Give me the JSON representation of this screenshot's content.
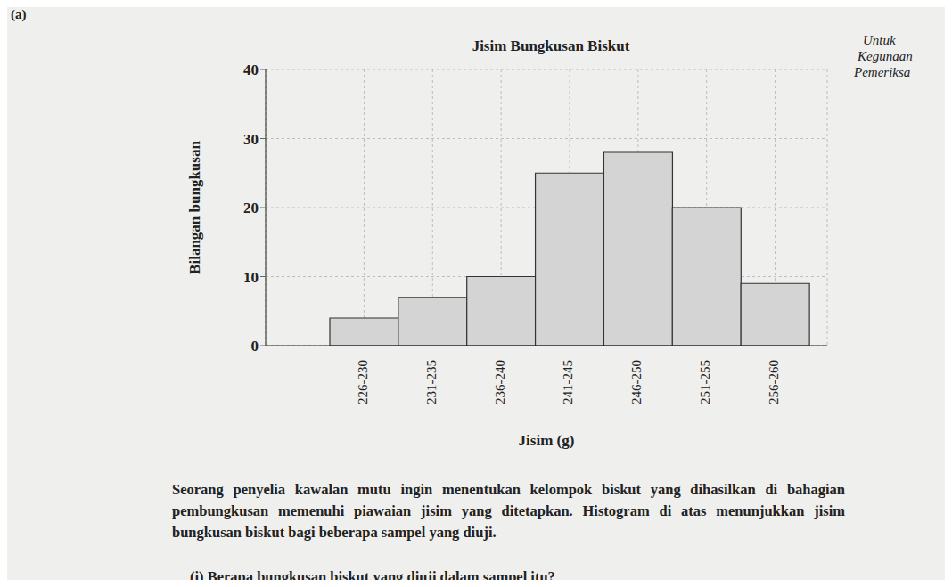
{
  "part_label": "(a)",
  "margin_note": [
    "Untuk",
    "Kegunaan",
    "Pemeriksa"
  ],
  "chart_data": {
    "type": "bar",
    "title": "Jisim Bungkusan Biskut",
    "x_label": "Jisim (g)",
    "y_label": "Bilangan bungkusan",
    "categories": [
      "226-230",
      "231-235",
      "236-240",
      "241-245",
      "246-250",
      "251-255",
      "256-260"
    ],
    "values": [
      4,
      7,
      10,
      25,
      28,
      20,
      9
    ],
    "color": "#d4d4d4",
    "ylim": [
      0,
      40
    ],
    "yticks": [
      0,
      10,
      20,
      30,
      40
    ],
    "grid": true
  },
  "paragraph": "Seorang penyelia kawalan mutu ingin menentukan kelompok biskut yang dihasilkan di bahagian pembungkusan memenuhi piawaian jisim yang ditetapkan. Histogram di atas menunjukkan jisim bungkusan biskut bagi beberapa sampel yang diuji.",
  "question": "(i) Berapa bungkusan biskut yang diuji dalam sampel itu?"
}
